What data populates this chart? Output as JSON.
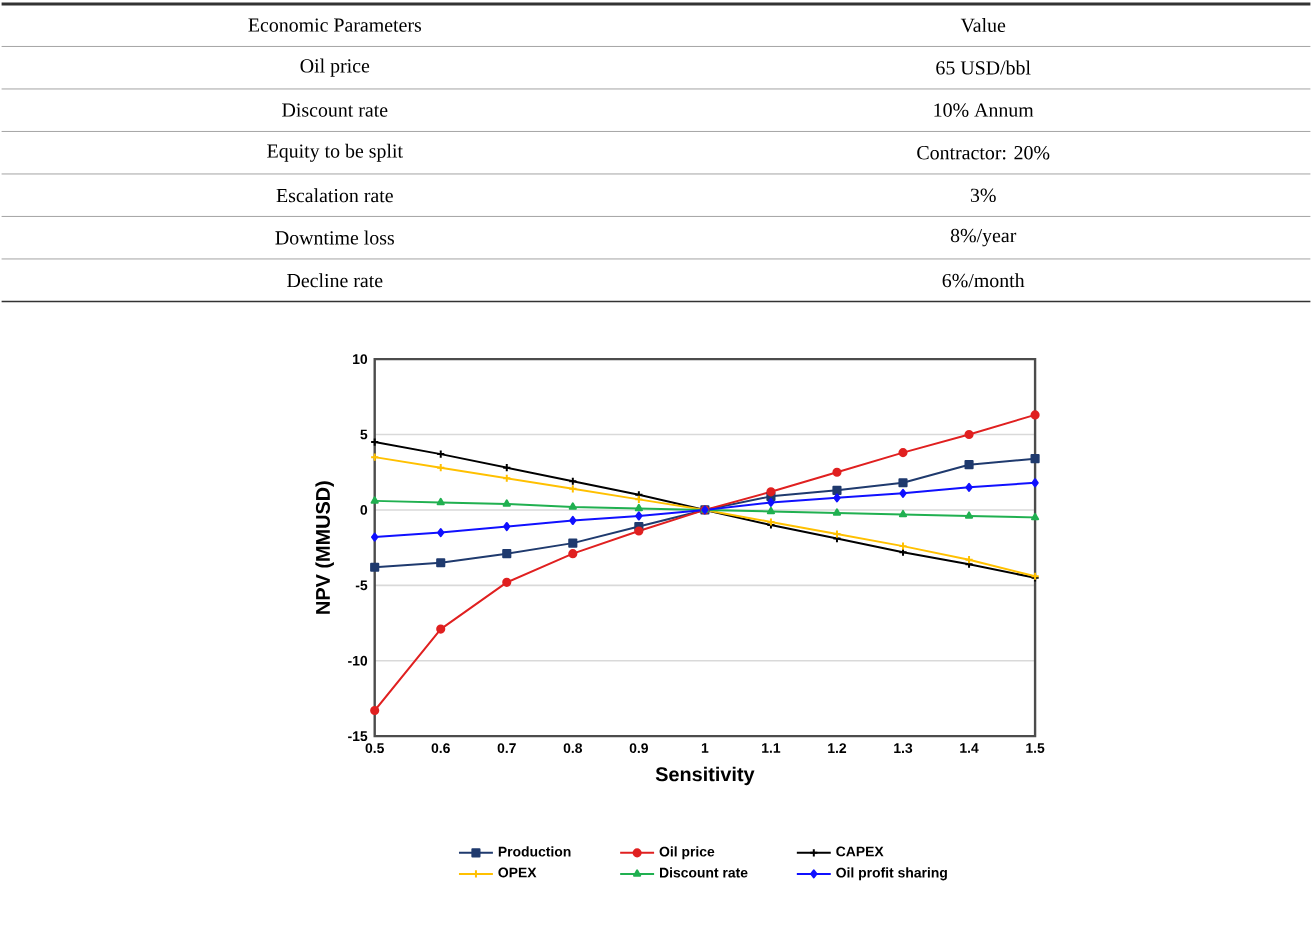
{
  "chart_data": [
    {
      "type": "other",
      "annotations": [
        "Economic Parameters",
        "Value",
        "Oil price",
        "65 USD/bbl",
        "Discount rate",
        "10% Annum",
        "Equity to be split",
        "Contractor: 20%",
        "Escalation rate",
        "3%",
        "Downtime loss",
        "8%/year",
        "Decline rate",
        "6%/month"
      ]
    },
    {
      "type": "line",
      "xlabel": "Sensitivity",
      "ylabel": "NPV (MMUSD)",
      "x": [
        0.5,
        0.6,
        0.7,
        0.8,
        0.9,
        1,
        1.1,
        1.2,
        1.3,
        1.4,
        1.5
      ],
      "xlim": [
        0.5,
        1.5
      ],
      "xticks": [
        0.5,
        0.6,
        0.7,
        0.8,
        0.9,
        1,
        1.1,
        1.2,
        1.3,
        1.4,
        1.5
      ],
      "ylim": [
        -15,
        10
      ],
      "yticks": [
        -15,
        -10,
        -5,
        0,
        5,
        10
      ],
      "grid": "y",
      "legend": "bottom",
      "series": [
        {
          "name": "Production",
          "color": "#1f3a6e",
          "marker": "square",
          "values": [
            -3.8,
            -3.5,
            -2.9,
            -2.2,
            -1.1,
            0,
            0.9,
            1.3,
            1.8,
            3.0,
            3.4
          ]
        },
        {
          "name": "Oil price",
          "color": "#e02020",
          "marker": "circle",
          "values": [
            -13.3,
            -7.9,
            -4.8,
            -2.9,
            -1.4,
            0,
            1.2,
            2.5,
            3.8,
            5.0,
            6.3
          ]
        },
        {
          "name": "CAPEX",
          "color": "#000000",
          "marker": "cross",
          "values": [
            4.5,
            3.7,
            2.8,
            1.9,
            1.0,
            0,
            -1.0,
            -1.9,
            -2.8,
            -3.6,
            -4.5
          ]
        },
        {
          "name": "OPEX",
          "color": "#ffc000",
          "marker": "cross",
          "values": [
            3.5,
            2.8,
            2.1,
            1.4,
            0.7,
            0,
            -0.8,
            -1.6,
            -2.4,
            -3.3,
            -4.4
          ]
        },
        {
          "name": "Discount rate",
          "color": "#20b050",
          "marker": "triangle",
          "values": [
            0.6,
            0.5,
            0.4,
            0.2,
            0.1,
            0,
            -0.1,
            -0.2,
            -0.3,
            -0.4,
            -0.5
          ]
        },
        {
          "name": "Oil profit sharing",
          "color": "#1010ff",
          "marker": "diamond",
          "values": [
            -1.8,
            -1.5,
            -1.1,
            -0.7,
            -0.4,
            0,
            0.5,
            0.8,
            1.1,
            1.5,
            1.8
          ]
        }
      ]
    }
  ]
}
